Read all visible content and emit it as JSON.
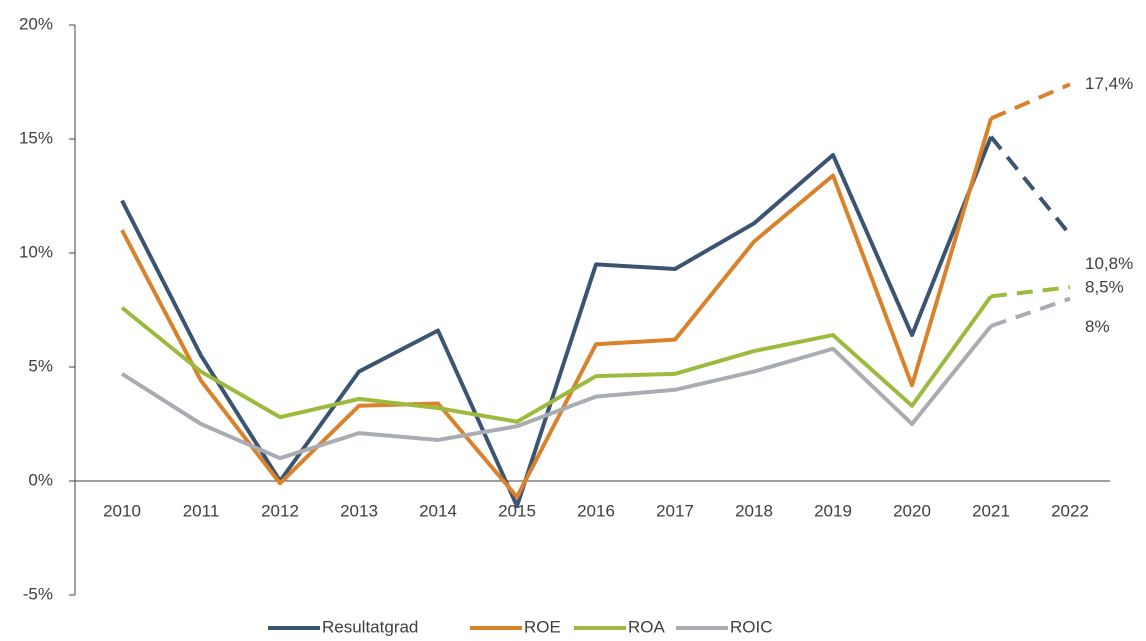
{
  "chart_data": {
    "type": "line",
    "categories": [
      "2010",
      "2011",
      "2012",
      "2013",
      "2014",
      "2015",
      "2016",
      "2017",
      "2018",
      "2019",
      "2020",
      "2021",
      "2022"
    ],
    "series": [
      {
        "name": "Resultatgrad",
        "color": "#3b5471",
        "values": [
          12.3,
          5.5,
          0,
          4.8,
          6.6,
          -1.1,
          9.5,
          9.3,
          11.3,
          14.3,
          6.4,
          15.1,
          10.8
        ],
        "value_labels": [
          null,
          null,
          null,
          null,
          null,
          null,
          null,
          null,
          null,
          null,
          null,
          null,
          "10,8%"
        ]
      },
      {
        "name": "ROE",
        "color": "#d9822b",
        "values": [
          11.0,
          4.4,
          -0.1,
          3.3,
          3.4,
          -0.7,
          6.0,
          6.2,
          10.5,
          13.4,
          4.2,
          15.9,
          17.4
        ],
        "value_labels": [
          null,
          null,
          null,
          null,
          null,
          null,
          null,
          null,
          null,
          null,
          null,
          null,
          "17,4%"
        ]
      },
      {
        "name": "ROA",
        "color": "#9cba3e",
        "values": [
          7.6,
          4.8,
          2.8,
          3.6,
          3.2,
          2.6,
          4.6,
          4.7,
          5.7,
          6.4,
          3.3,
          8.1,
          8.5
        ],
        "value_labels": [
          null,
          null,
          null,
          null,
          null,
          null,
          null,
          null,
          null,
          null,
          null,
          null,
          "8,5%"
        ]
      },
      {
        "name": "ROIC",
        "color": "#a9adb2",
        "values": [
          4.7,
          2.5,
          1.0,
          2.1,
          1.8,
          2.4,
          3.7,
          4.0,
          4.8,
          5.8,
          2.5,
          6.8,
          8.0
        ],
        "value_labels": [
          null,
          null,
          null,
          null,
          null,
          null,
          null,
          null,
          null,
          null,
          null,
          null,
          "8%"
        ]
      }
    ],
    "dashed_from": 11,
    "ylim": [
      -5,
      20
    ],
    "yticks": [
      {
        "value": -5,
        "label": "-5%"
      },
      {
        "value": 0,
        "label": "0%"
      },
      {
        "value": 5,
        "label": "5%"
      },
      {
        "value": 10,
        "label": "10%"
      },
      {
        "value": 15,
        "label": "15%"
      },
      {
        "value": 20,
        "label": "20%"
      }
    ],
    "legend": "bottom"
  }
}
